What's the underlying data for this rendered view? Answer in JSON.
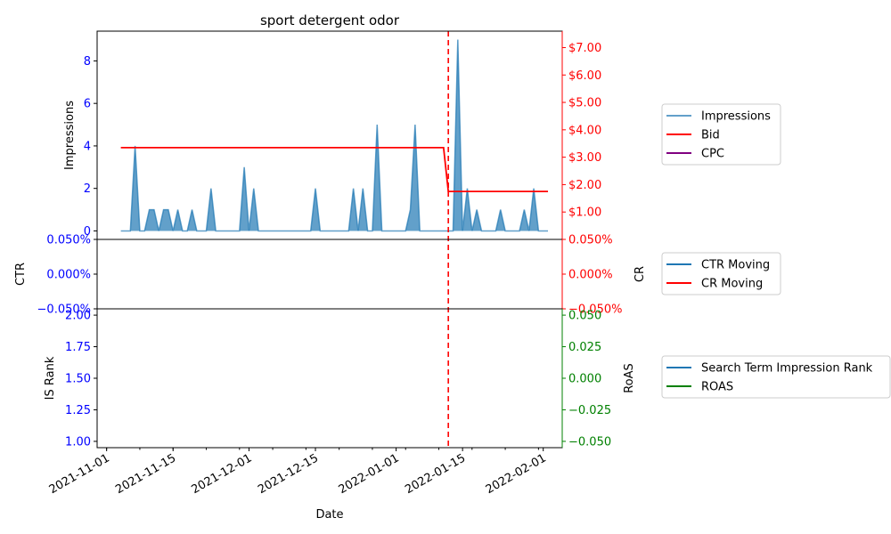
{
  "colors": {
    "impressions": "#1f77b4",
    "bid": "#ff0000",
    "cpc": "#800080",
    "ctr": "#1f77b4",
    "cr": "#ff0000",
    "rank": "#1f77b4",
    "roas": "#008000",
    "left_ticks": "#0000ff",
    "right_ticks_top": "#ff0000",
    "right_ticks_bottom": "#008000"
  },
  "chart_data": {
    "type": "line",
    "title": "sport detergent odor",
    "xlabel": "Date",
    "x_range": [
      "2021-10-30",
      "2022-02-05"
    ],
    "x_ticks": [
      "2021-11-01",
      "2021-11-15",
      "2021-12-01",
      "2021-12-15",
      "2022-01-01",
      "2022-01-15",
      "2022-02-01"
    ],
    "marker_date": "2022-01-12",
    "panels": [
      {
        "ylabel_left": "Impressions",
        "ylim_left": [
          -0.4,
          9.4
        ],
        "yticks_left": [
          "0",
          "2",
          "4",
          "6",
          "8"
        ],
        "ylabel_right": "",
        "ylim_right": [
          0,
          7.6
        ],
        "yticks_right": [
          "$1.00",
          "$2.00",
          "$3.00",
          "$4.00",
          "$5.00",
          "$6.00",
          "$7.00"
        ],
        "series": [
          {
            "name": "Impressions",
            "kind": "area",
            "axis": "left",
            "points": [
              [
                "2021-11-04",
                0
              ],
              [
                "2021-11-06",
                0
              ],
              [
                "2021-11-07",
                4
              ],
              [
                "2021-11-08",
                0
              ],
              [
                "2021-11-09",
                0
              ],
              [
                "2021-11-10",
                1
              ],
              [
                "2021-11-11",
                1
              ],
              [
                "2021-11-12",
                0
              ],
              [
                "2021-11-13",
                1
              ],
              [
                "2021-11-14",
                1
              ],
              [
                "2021-11-15",
                0
              ],
              [
                "2021-11-16",
                1
              ],
              [
                "2021-11-17",
                0
              ],
              [
                "2021-11-18",
                0
              ],
              [
                "2021-11-19",
                1
              ],
              [
                "2021-11-20",
                0
              ],
              [
                "2021-11-22",
                0
              ],
              [
                "2021-11-23",
                2
              ],
              [
                "2021-11-24",
                0
              ],
              [
                "2021-11-29",
                0
              ],
              [
                "2021-11-30",
                3
              ],
              [
                "2021-12-01",
                0
              ],
              [
                "2021-12-02",
                2
              ],
              [
                "2021-12-03",
                0
              ],
              [
                "2021-12-14",
                0
              ],
              [
                "2021-12-15",
                2
              ],
              [
                "2021-12-16",
                0
              ],
              [
                "2021-12-22",
                0
              ],
              [
                "2021-12-23",
                2
              ],
              [
                "2021-12-24",
                0
              ],
              [
                "2021-12-25",
                2
              ],
              [
                "2021-12-26",
                0
              ],
              [
                "2021-12-27",
                0
              ],
              [
                "2021-12-28",
                5
              ],
              [
                "2021-12-29",
                0
              ],
              [
                "2022-01-03",
                0
              ],
              [
                "2022-01-04",
                1
              ],
              [
                "2022-01-05",
                5
              ],
              [
                "2022-01-06",
                0
              ],
              [
                "2022-01-13",
                0
              ],
              [
                "2022-01-14",
                9
              ],
              [
                "2022-01-15",
                0
              ],
              [
                "2022-01-16",
                2
              ],
              [
                "2022-01-17",
                0
              ],
              [
                "2022-01-18",
                1
              ],
              [
                "2022-01-19",
                0
              ],
              [
                "2022-01-22",
                0
              ],
              [
                "2022-01-23",
                1
              ],
              [
                "2022-01-24",
                0
              ],
              [
                "2022-01-27",
                0
              ],
              [
                "2022-01-28",
                1
              ],
              [
                "2022-01-29",
                0
              ],
              [
                "2022-01-30",
                2
              ],
              [
                "2022-01-31",
                0
              ],
              [
                "2022-02-02",
                0
              ]
            ]
          },
          {
            "name": "Bid",
            "kind": "line",
            "axis": "right",
            "points": [
              [
                "2021-11-04",
                3.35
              ],
              [
                "2022-01-11",
                3.35
              ],
              [
                "2022-01-12",
                1.75
              ],
              [
                "2022-02-02",
                1.75
              ]
            ]
          },
          {
            "name": "CPC",
            "kind": "line",
            "axis": "right",
            "points": []
          }
        ]
      },
      {
        "ylabel_left": "CTR",
        "ylim_left": [
          -0.05,
          0.05
        ],
        "yticks_left": [
          "−0.050%",
          "0.000%",
          "0.050%"
        ],
        "ylabel_right": "CR",
        "ylim_right": [
          -0.05,
          0.05
        ],
        "yticks_right": [
          "−0.050%",
          "0.000%",
          "0.050%"
        ],
        "series": [
          {
            "name": "CTR Moving",
            "kind": "line",
            "axis": "left",
            "points": []
          },
          {
            "name": "CR Moving",
            "kind": "line",
            "axis": "right",
            "points": []
          }
        ]
      },
      {
        "ylabel_left": "IS Rank",
        "ylim_left": [
          0.95,
          2.05
        ],
        "yticks_left": [
          "1.00",
          "1.25",
          "1.50",
          "1.75",
          "2.00"
        ],
        "ylabel_right": "RoAS",
        "ylim_right": [
          -0.055,
          0.055
        ],
        "yticks_right": [
          "−0.050",
          "−0.025",
          "0.000",
          "0.025",
          "0.050"
        ],
        "series": [
          {
            "name": "Search Term Impression Rank",
            "kind": "line",
            "axis": "left",
            "points": []
          },
          {
            "name": "ROAS",
            "kind": "line",
            "axis": "right",
            "points": []
          }
        ]
      }
    ],
    "legends": [
      {
        "placement": "right",
        "entries": [
          "Impressions",
          "Bid",
          "CPC"
        ]
      },
      {
        "placement": "right",
        "entries": [
          "CTR Moving",
          "CR Moving"
        ]
      },
      {
        "placement": "right",
        "entries": [
          "Search Term Impression Rank",
          "ROAS"
        ]
      }
    ],
    "grid": false
  }
}
